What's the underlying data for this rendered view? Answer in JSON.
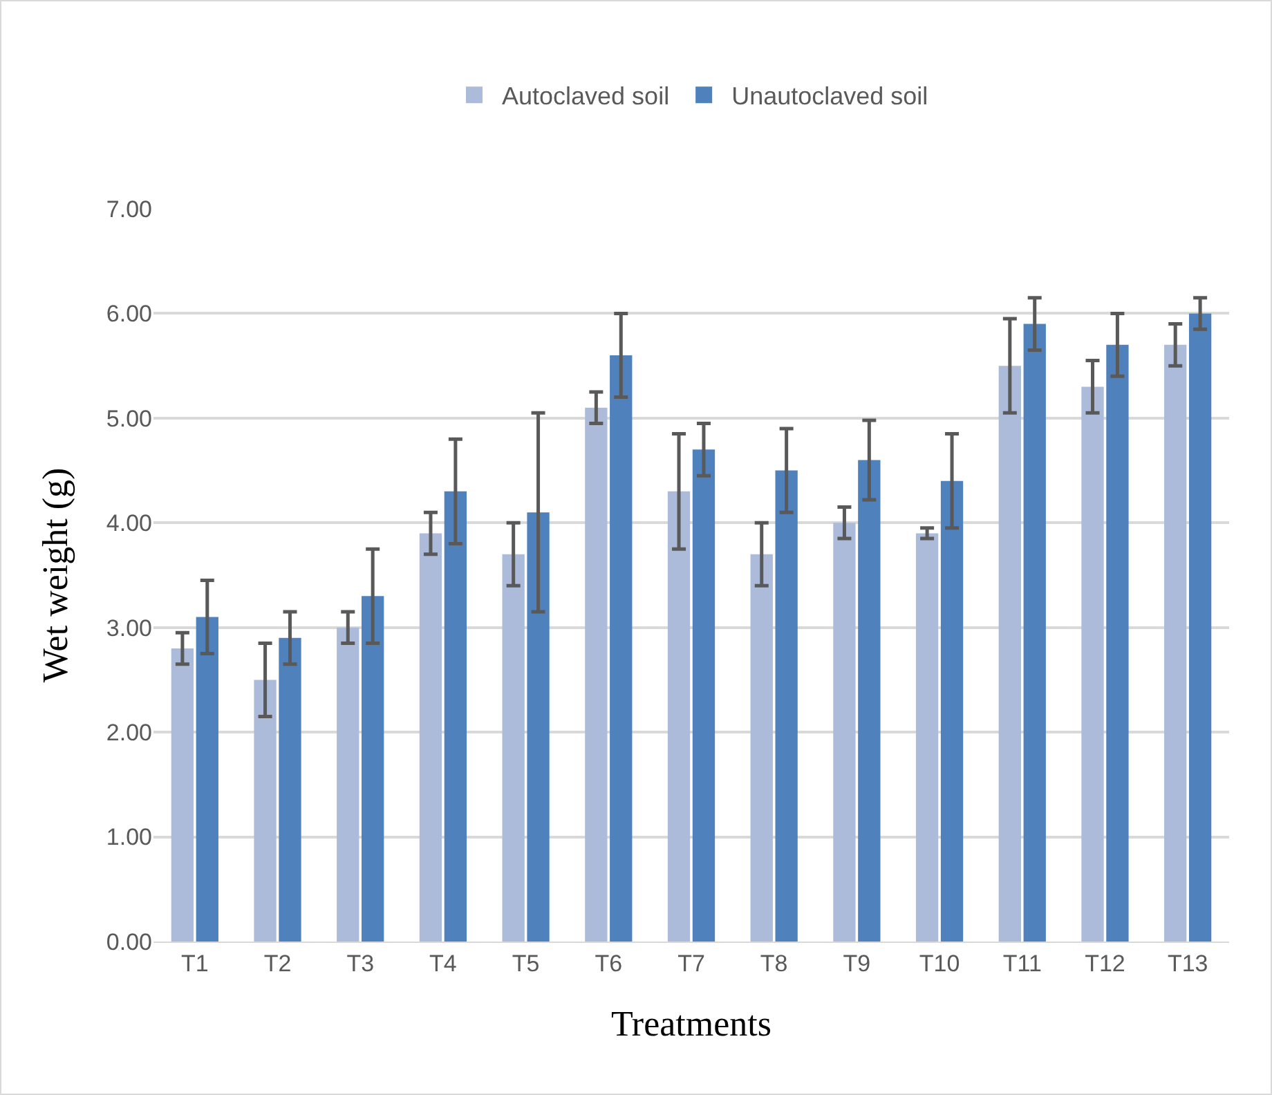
{
  "chart_data": {
    "type": "bar",
    "xlabel": "Treatments",
    "ylabel": "Wet weight (g)",
    "categories": [
      "T1",
      "T2",
      "T3",
      "T4",
      "T5",
      "T6",
      "T7",
      "T8",
      "T9",
      "T10",
      "T11",
      "T12",
      "T13"
    ],
    "series": [
      {
        "name": "Autoclaved soil",
        "color": "#abbbd9",
        "values": [
          2.8,
          2.5,
          3.0,
          3.9,
          3.7,
          5.1,
          4.3,
          3.7,
          4.0,
          3.9,
          5.5,
          5.3,
          5.7
        ],
        "errors": [
          0.15,
          0.35,
          0.15,
          0.2,
          0.3,
          0.15,
          0.55,
          0.3,
          0.15,
          0.05,
          0.45,
          0.25,
          0.2
        ]
      },
      {
        "name": "Unautoclaved soil",
        "color": "#4f81bd",
        "values": [
          3.1,
          2.9,
          3.3,
          4.3,
          4.1,
          5.6,
          4.7,
          4.5,
          4.6,
          4.4,
          5.9,
          5.7,
          6.0
        ],
        "errors": [
          0.35,
          0.25,
          0.45,
          0.5,
          0.95,
          0.4,
          0.25,
          0.4,
          0.38,
          0.45,
          0.25,
          0.3,
          0.15
        ]
      }
    ],
    "ylim": [
      0,
      7
    ],
    "yticks": [
      {
        "value": 0,
        "label": "0.00"
      },
      {
        "value": 1,
        "label": "1.00"
      },
      {
        "value": 2,
        "label": "2.00"
      },
      {
        "value": 3,
        "label": "3.00"
      },
      {
        "value": 4,
        "label": "4.00"
      },
      {
        "value": 5,
        "label": "5.00"
      },
      {
        "value": 6,
        "label": "6.00"
      },
      {
        "value": 7,
        "label": "7.00"
      }
    ],
    "grid": "y",
    "legend": "top"
  }
}
